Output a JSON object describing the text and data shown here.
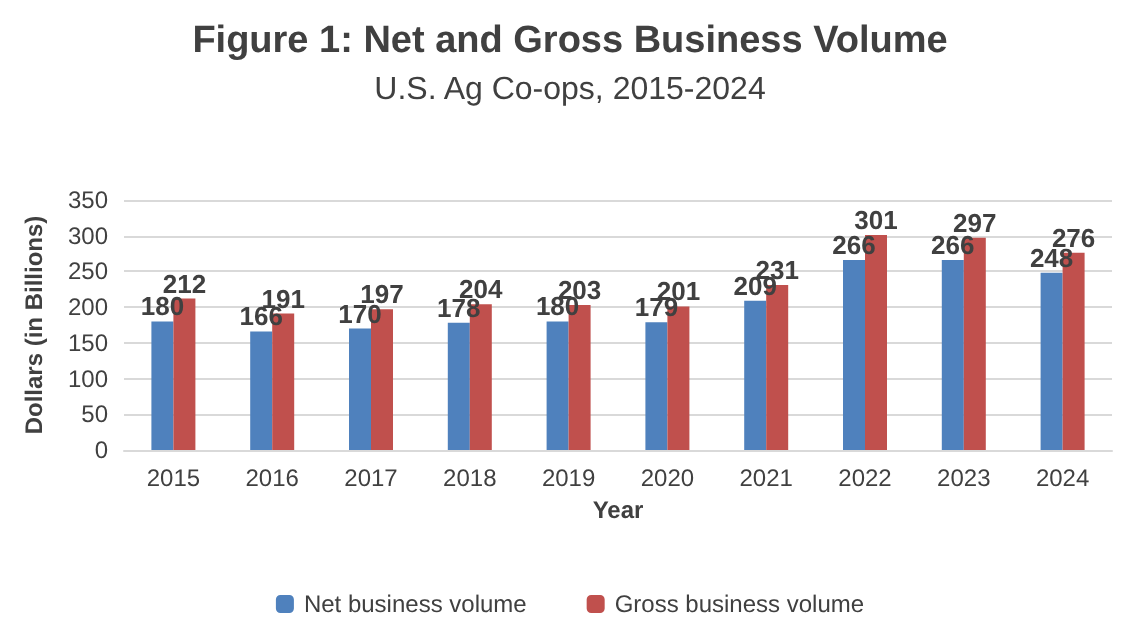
{
  "chart_data": {
    "type": "bar",
    "title": "Figure 1: Net and Gross Business Volume",
    "subtitle": "U.S. Ag Co-ops, 2015-2024",
    "xlabel": "Year",
    "ylabel": "Dollars (in Billions)",
    "categories": [
      "2015",
      "2016",
      "2017",
      "2018",
      "2019",
      "2020",
      "2021",
      "2022",
      "2023",
      "2024"
    ],
    "series": [
      {
        "name": "Net business volume",
        "color": "#4f81bd",
        "values": [
          180,
          166,
          170,
          178,
          180,
          179,
          209,
          266,
          266,
          248
        ]
      },
      {
        "name": "Gross business volume",
        "color": "#c0504d",
        "values": [
          212,
          191,
          197,
          204,
          203,
          201,
          231,
          301,
          297,
          276
        ]
      }
    ],
    "ylim": [
      0,
      350
    ],
    "yticks": [
      0,
      50,
      100,
      150,
      200,
      250,
      300,
      350
    ],
    "grid": "y",
    "legend": "bottom",
    "data_labels": true
  }
}
